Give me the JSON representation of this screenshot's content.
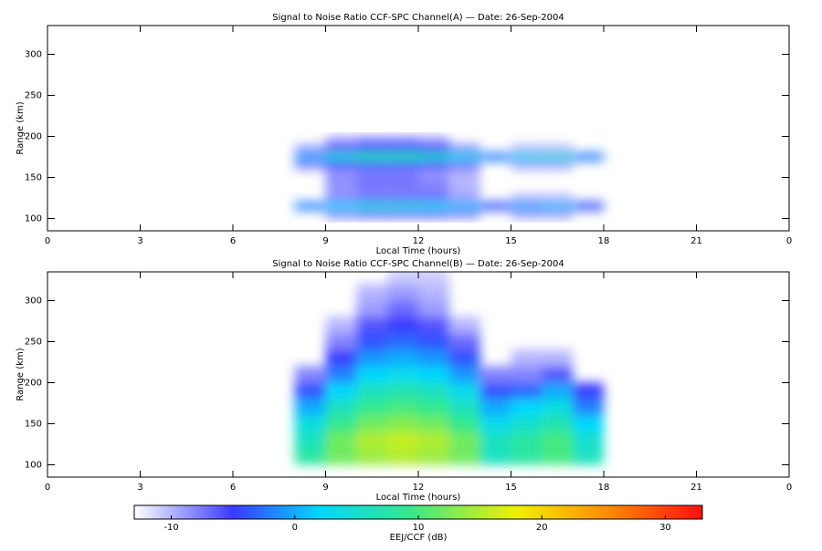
{
  "chart_data": [
    {
      "type": "heatmap",
      "title": "Signal to Noise Ratio CCF-SPC Channel(A) — Date: 26-Sep-2004",
      "xlabel": "Local Time (hours)",
      "ylabel": "Range (km)",
      "xlim": [
        0,
        24
      ],
      "xticks": [
        0,
        3,
        6,
        9,
        12,
        15,
        18,
        21,
        {
          "value": 24,
          "label": "0"
        }
      ],
      "ylim": [
        85,
        335
      ],
      "yticks": [
        100,
        150,
        200,
        250,
        300
      ],
      "x_edges": [
        8,
        9,
        10,
        11,
        12,
        13,
        14,
        15,
        16,
        17,
        18
      ],
      "y_edges": [
        100,
        110,
        120,
        130,
        140,
        150,
        160,
        170,
        180,
        190,
        200
      ],
      "values": [
        [
          null,
          -8,
          -7,
          -7,
          -7,
          -8,
          null,
          -9,
          -9,
          null
        ],
        [
          -2,
          2,
          4,
          4,
          3,
          1,
          -4,
          0,
          1,
          -4
        ],
        [
          null,
          -8,
          -7,
          -7,
          -7,
          -9,
          null,
          -10,
          -10,
          null
        ],
        [
          null,
          -9,
          -8,
          -8,
          -8,
          -10,
          null,
          null,
          null,
          null
        ],
        [
          null,
          -8,
          -7,
          -7,
          -8,
          -10,
          null,
          null,
          null,
          null
        ],
        [
          null,
          -9,
          -8,
          -8,
          -9,
          -10,
          null,
          null,
          null,
          null
        ],
        [
          -8,
          -5,
          -4,
          -4,
          -5,
          -7,
          null,
          -9,
          -9,
          null
        ],
        [
          0,
          5,
          8,
          8,
          6,
          3,
          -2,
          3,
          4,
          -2
        ],
        [
          -9,
          -6,
          -4,
          -4,
          -5,
          -8,
          null,
          -10,
          -10,
          null
        ],
        [
          null,
          -9,
          -8,
          -8,
          -9,
          null,
          null,
          null,
          null,
          null
        ]
      ]
    },
    {
      "type": "heatmap",
      "title": "Signal to Noise Ratio CCF-SPC Channel(B) — Date: 26-Sep-2004",
      "xlabel": "Local Time (hours)",
      "ylabel": "Range (km)",
      "xlim": [
        0,
        24
      ],
      "xticks": [
        0,
        3,
        6,
        9,
        12,
        15,
        18,
        21,
        {
          "value": 24,
          "label": "0"
        }
      ],
      "ylim": [
        85,
        335
      ],
      "yticks": [
        100,
        150,
        200,
        250,
        300
      ],
      "x_edges": [
        8,
        9,
        10,
        11,
        12,
        13,
        14,
        15,
        16,
        17,
        18
      ],
      "y_edges": [
        100,
        120,
        140,
        160,
        180,
        200,
        220,
        240,
        260,
        280,
        300,
        320,
        340
      ],
      "values": [
        [
          8,
          12,
          14,
          15,
          14,
          12,
          6,
          8,
          10,
          6
        ],
        [
          6,
          12,
          15,
          16,
          15,
          12,
          6,
          8,
          10,
          5
        ],
        [
          4,
          9,
          12,
          13,
          12,
          9,
          3,
          5,
          7,
          2
        ],
        [
          0,
          6,
          9,
          10,
          9,
          6,
          0,
          2,
          4,
          -2
        ],
        [
          -4,
          2,
          6,
          7,
          6,
          3,
          -4,
          -3,
          0,
          -5
        ],
        [
          -8,
          -2,
          2,
          3,
          2,
          -1,
          -8,
          -8,
          -6,
          null
        ],
        [
          null,
          -5,
          -1,
          0,
          -1,
          -4,
          null,
          -10,
          -10,
          null
        ],
        [
          null,
          -8,
          -4,
          -3,
          -4,
          -7,
          null,
          null,
          null,
          null
        ],
        [
          null,
          -10,
          -6,
          -5,
          -6,
          -10,
          null,
          null,
          null,
          null
        ],
        [
          null,
          null,
          -9,
          -7,
          -9,
          null,
          null,
          null,
          null,
          null
        ],
        [
          null,
          null,
          -10,
          -9,
          -10,
          null,
          null,
          null,
          null,
          null
        ],
        [
          null,
          null,
          null,
          -11,
          -11,
          null,
          null,
          null,
          null,
          null
        ]
      ]
    }
  ],
  "colorbar": {
    "label": "EEJ/CCF (dB)",
    "lim": [
      -13,
      33
    ],
    "ticks": [
      -10,
      0,
      10,
      20,
      30
    ],
    "colorscale": [
      {
        "value": -13,
        "color": "#ffffff"
      },
      {
        "value": -5,
        "color": "#3a3aff"
      },
      {
        "value": 2,
        "color": "#00d8ff"
      },
      {
        "value": 9,
        "color": "#30e890"
      },
      {
        "value": 18,
        "color": "#f0f000"
      },
      {
        "value": 25,
        "color": "#ff9000"
      },
      {
        "value": 33,
        "color": "#ff1010"
      }
    ]
  }
}
